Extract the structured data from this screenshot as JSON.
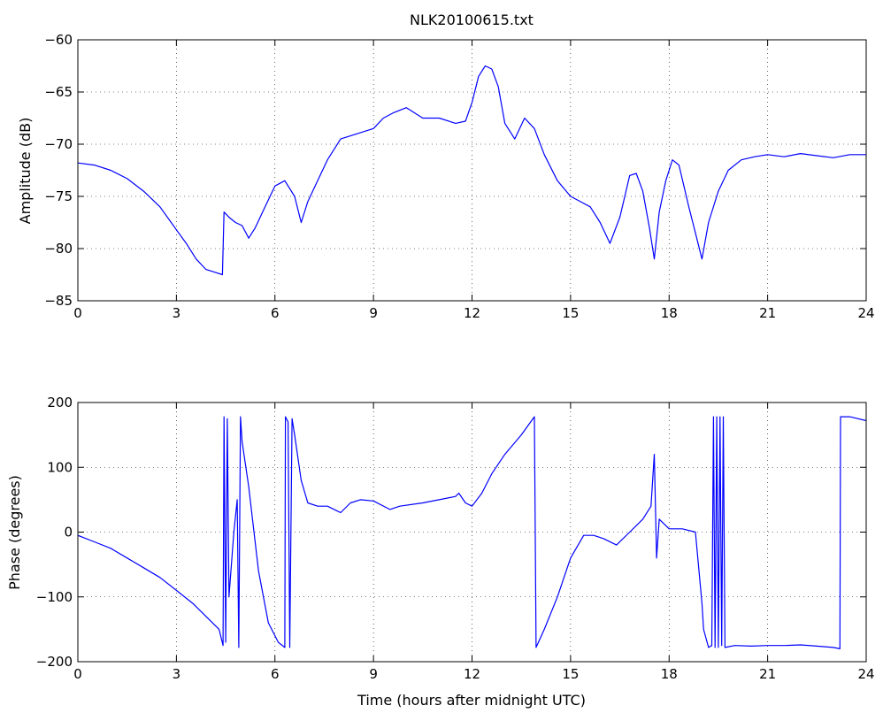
{
  "chart_data": [
    {
      "type": "line",
      "title": "NLK20100615.txt",
      "xlabel": "",
      "ylabel": "Amplitude (dB)",
      "xlim": [
        0,
        24
      ],
      "ylim": [
        -85,
        -60
      ],
      "xticks": [
        0,
        3,
        6,
        9,
        12,
        15,
        18,
        21,
        24
      ],
      "yticks": [
        -85,
        -80,
        -75,
        -70,
        -65,
        -60
      ],
      "grid": true,
      "series": [
        {
          "color": "#0000ff",
          "x": [
            0,
            0.5,
            1,
            1.5,
            2,
            2.5,
            3,
            3.3,
            3.6,
            3.9,
            4.2,
            4.4,
            4.45,
            4.6,
            4.8,
            5.0,
            5.2,
            5.4,
            5.7,
            6.0,
            6.3,
            6.6,
            6.8,
            7.0,
            7.3,
            7.6,
            8.0,
            8.5,
            9.0,
            9.3,
            9.6,
            10.0,
            10.5,
            11.0,
            11.5,
            11.8,
            12.0,
            12.2,
            12.4,
            12.6,
            12.8,
            13.0,
            13.3,
            13.6,
            13.9,
            14.2,
            14.6,
            15.0,
            15.3,
            15.6,
            15.9,
            16.2,
            16.5,
            16.8,
            17.0,
            17.2,
            17.4,
            17.55,
            17.7,
            17.9,
            18.1,
            18.3,
            18.6,
            18.8,
            19.0,
            19.2,
            19.5,
            19.8,
            20.2,
            20.6,
            21.0,
            21.5,
            22.0,
            22.5,
            23.0,
            23.5,
            24.0
          ],
          "y": [
            -71.8,
            -72.0,
            -72.5,
            -73.3,
            -74.5,
            -76.0,
            -78.2,
            -79.5,
            -81.0,
            -82.0,
            -82.3,
            -82.5,
            -76.5,
            -77.0,
            -77.5,
            -77.8,
            -79.0,
            -78.0,
            -76.0,
            -74.0,
            -73.5,
            -75.0,
            -77.5,
            -75.5,
            -73.5,
            -71.5,
            -69.5,
            -69.0,
            -68.5,
            -67.5,
            -67.0,
            -66.5,
            -67.5,
            -67.5,
            -68.0,
            -67.8,
            -66.0,
            -63.5,
            -62.5,
            -62.8,
            -64.5,
            -68.0,
            -69.5,
            -67.5,
            -68.5,
            -71.0,
            -73.5,
            -75.0,
            -75.5,
            -76.0,
            -77.5,
            -79.5,
            -77.0,
            -73.0,
            -72.8,
            -74.5,
            -78.0,
            -81.0,
            -76.5,
            -73.5,
            -71.5,
            -72.0,
            -76.0,
            -78.5,
            -81.0,
            -77.5,
            -74.5,
            -72.5,
            -71.5,
            -71.2,
            -71.0,
            -71.2,
            -70.9,
            -71.1,
            -71.3,
            -71.0,
            -71.0
          ]
        }
      ]
    },
    {
      "type": "line",
      "title": "",
      "xlabel": "Time (hours after midnight UTC)",
      "ylabel": "Phase (degrees)",
      "xlim": [
        0,
        24
      ],
      "ylim": [
        -200,
        200
      ],
      "xticks": [
        0,
        3,
        6,
        9,
        12,
        15,
        18,
        21,
        24
      ],
      "yticks": [
        -200,
        -100,
        0,
        100,
        200
      ],
      "grid": true,
      "series": [
        {
          "color": "#0000ff",
          "x": [
            0,
            0.5,
            1,
            1.5,
            2,
            2.5,
            3,
            3.5,
            4.0,
            4.3,
            4.42,
            4.45,
            4.5,
            4.55,
            4.6,
            4.75,
            4.85,
            4.9,
            4.95,
            5.0,
            5.2,
            5.5,
            5.8,
            6.1,
            6.3,
            6.32,
            6.4,
            6.45,
            6.52,
            6.6,
            6.8,
            7.0,
            7.3,
            7.6,
            8.0,
            8.3,
            8.6,
            9.0,
            9.5,
            9.8,
            10.5,
            11.0,
            11.5,
            11.6,
            11.8,
            12.0,
            12.3,
            12.6,
            13.0,
            13.5,
            13.9,
            13.95,
            14.2,
            14.6,
            15.0,
            15.4,
            15.7,
            16.0,
            16.4,
            16.8,
            17.2,
            17.45,
            17.55,
            17.62,
            17.7,
            18.0,
            18.4,
            18.8,
            19.0,
            19.05,
            19.2,
            19.3,
            19.35,
            19.4,
            19.45,
            19.5,
            19.55,
            19.6,
            19.65,
            19.7,
            20.0,
            20.5,
            21.0,
            21.5,
            22.0,
            22.5,
            23.0,
            23.2,
            23.22,
            23.5,
            24.0
          ],
          "y": [
            -5,
            -15,
            -25,
            -40,
            -55,
            -70,
            -90,
            -110,
            -135,
            -150,
            -175,
            178,
            -170,
            175,
            -100,
            0,
            50,
            -178,
            178,
            140,
            70,
            -60,
            -140,
            -170,
            -178,
            178,
            170,
            -178,
            175,
            150,
            80,
            45,
            40,
            40,
            30,
            45,
            50,
            48,
            35,
            40,
            45,
            50,
            55,
            60,
            45,
            40,
            60,
            90,
            120,
            150,
            178,
            -178,
            -150,
            -100,
            -40,
            -5,
            -5,
            -10,
            -20,
            0,
            20,
            40,
            120,
            -40,
            20,
            5,
            5,
            0,
            -110,
            -150,
            -178,
            -175,
            178,
            -178,
            178,
            -178,
            178,
            -175,
            178,
            -178,
            -175,
            -176,
            -175,
            -175,
            -174,
            -176,
            -178,
            -180,
            178,
            178,
            172
          ]
        }
      ]
    }
  ]
}
